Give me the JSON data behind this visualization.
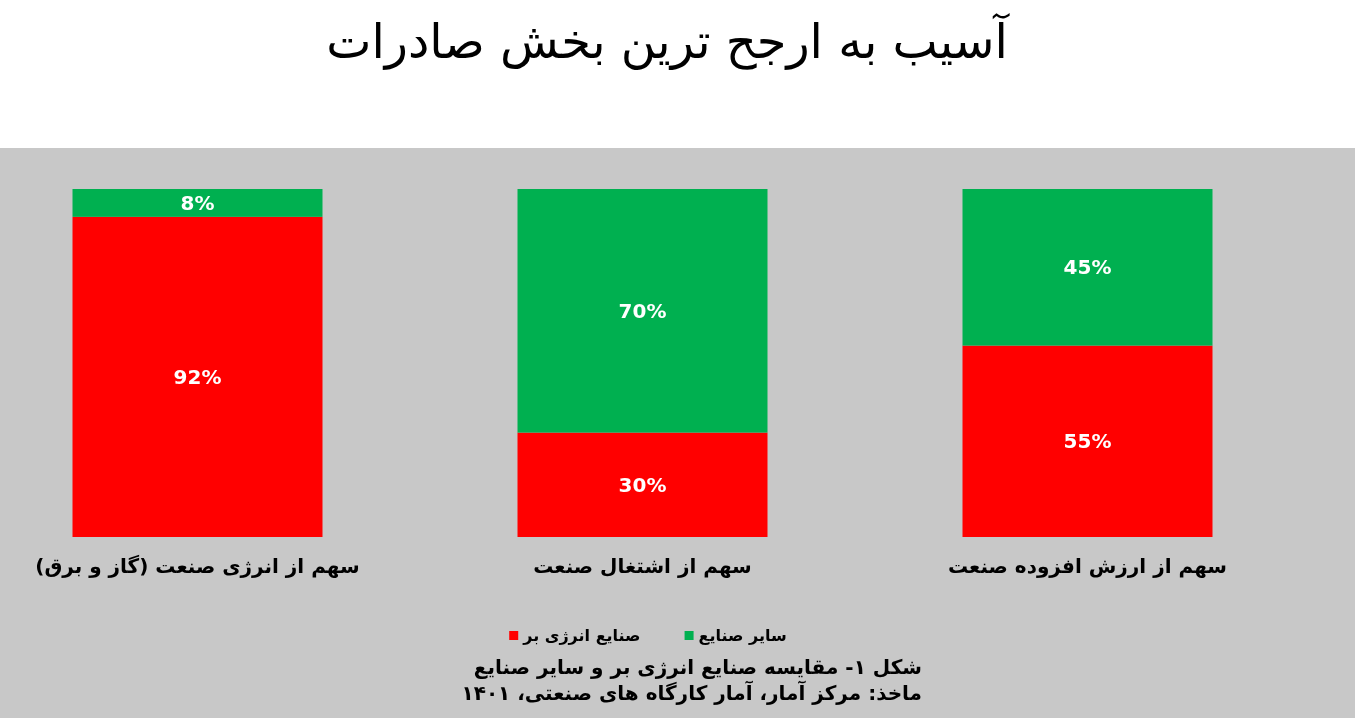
{
  "chart_data": {
    "type": "bar",
    "title": "آسیب به ارجح ترین بخش صادرات",
    "categories": [
      "سهم از انرژی صنعت (گاز و برق)",
      "سهم از اشتغال صنعت",
      "سهم از ارزش افزوده صنعت"
    ],
    "series": [
      {
        "name": "صنایع انرژی بر",
        "color": "#ff0000",
        "values": [
          92,
          30,
          55
        ],
        "value_labels": [
          "92%",
          "30%",
          "55%"
        ]
      },
      {
        "name": "سایر صنایع",
        "color": "#00b050",
        "values": [
          8,
          70,
          45
        ],
        "value_labels": [
          "8%",
          "70%",
          "45%"
        ]
      }
    ],
    "stacked": true,
    "legend": "bottom",
    "annotations": [
      "شکل ۱- مقایسه صنایع انرژی بر و سایر صنایع",
      "ماخذ: مرکز آمار، آمار کارگاه های صنعتی، ۱۴۰۱"
    ]
  }
}
